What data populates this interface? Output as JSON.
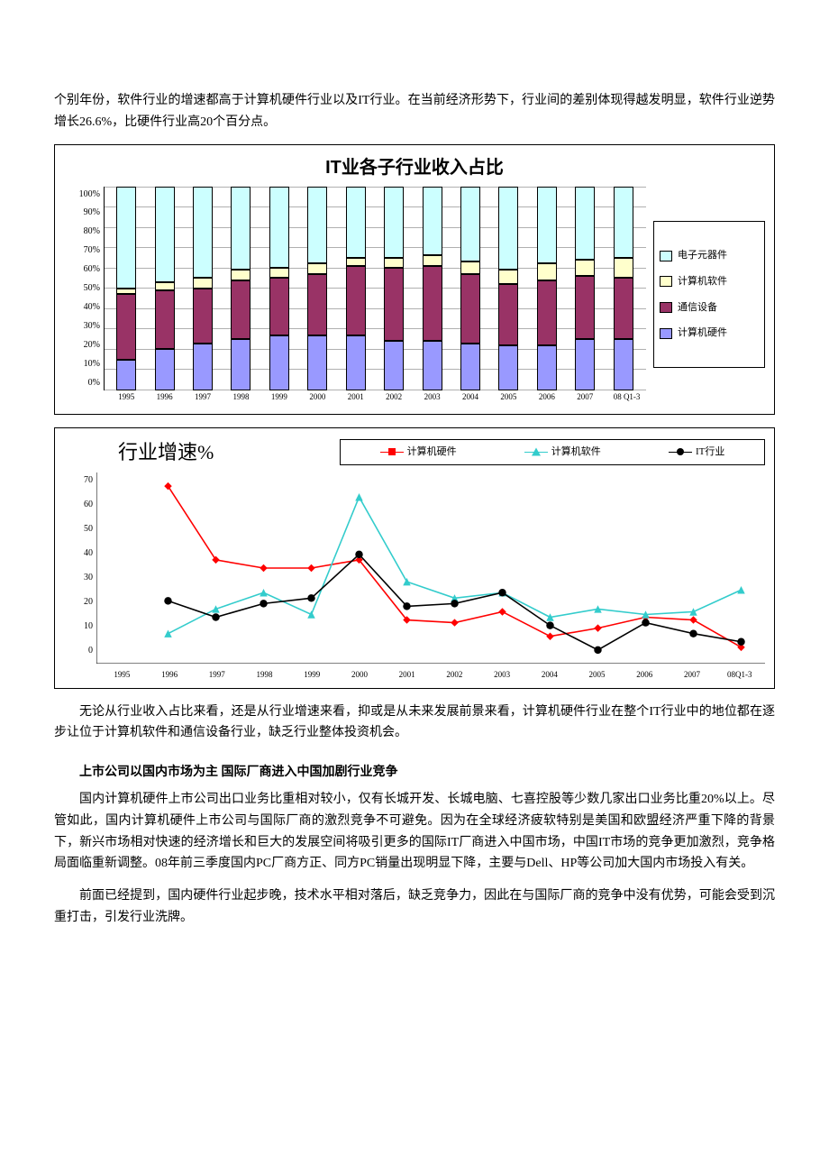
{
  "paragraphs": {
    "intro": "个别年份，软件行业的增速都高于计算机硬件行业以及IT行业。在当前经济形势下，行业间的差别体现得越发明显，软件行业逆势增长26.6%，比硬件行业高20个百分点。",
    "mid": "无论从行业收入占比来看，还是从行业增速来看，抑或是从未来发展前景来看，计算机硬件行业在整个IT行业中的地位都在逐步让位于计算机软件和通信设备行业，缺乏行业整体投资机会。",
    "heading": "上市公司以国内市场为主 国际厂商进入中国加剧行业竞争",
    "p2": "国内计算机硬件上市公司出口业务比重相对较小，仅有长城开发、长城电脑、七喜控股等少数几家出口业务比重20%以上。尽管如此，国内计算机硬件上市公司与国际厂商的激烈竞争不可避免。因为在全球经济疲软特别是美国和欧盟经济严重下降的背景下，新兴市场相对快速的经济增长和巨大的发展空间将吸引更多的国际IT厂商进入中国市场，中国IT市场的竞争更加激烈，竞争格局面临重新调整。08年前三季度国内PC厂商方正、同方PC销量出现明显下降，主要与Dell、HP等公司加大国内市场投入有关。",
    "p3": "前面已经提到，国内硬件行业起步晚，技术水平相对落后，缺乏竞争力，因此在与国际厂商的竞争中没有优势，可能会受到沉重打击，引发行业洗牌。"
  },
  "chart1": {
    "title": "IT业各子行业收入占比",
    "type": "stacked-bar",
    "categories": [
      "1995",
      "1996",
      "1997",
      "1998",
      "1999",
      "2000",
      "2001",
      "2002",
      "2003",
      "2004",
      "2005",
      "2006",
      "2007",
      "08 Q1-3"
    ],
    "series_order_bottom_to_top": [
      "hw",
      "comm",
      "sw",
      "elec"
    ],
    "legend_order_top_to_bottom": [
      "elec",
      "sw",
      "comm",
      "hw"
    ],
    "series": {
      "hw": {
        "label": "计算机硬件",
        "color": "#9999ff"
      },
      "comm": {
        "label": "通信设备",
        "color": "#993366"
      },
      "sw": {
        "label": "计算机软件",
        "color": "#ffffcc"
      },
      "elec": {
        "label": "电子元器件",
        "color": "#ccffff"
      }
    },
    "values_pct": {
      "hw": [
        15,
        20,
        23,
        25,
        27,
        27,
        27,
        24,
        24,
        23,
        22,
        22,
        25,
        25
      ],
      "comm": [
        32,
        29,
        27,
        29,
        28,
        30,
        34,
        36,
        37,
        34,
        30,
        32,
        31,
        30
      ],
      "sw": [
        3,
        4,
        5,
        5,
        5,
        5,
        4,
        5,
        5,
        6,
        7,
        8,
        8,
        10
      ],
      "elec": [
        50,
        47,
        45,
        41,
        40,
        38,
        35,
        35,
        34,
        37,
        41,
        38,
        36,
        35
      ]
    },
    "yaxis": {
      "min": 0,
      "max": 100,
      "step": 10,
      "suffix": "%"
    },
    "grid_color": "#b0b0b0",
    "bar_border": "#000000",
    "background": "#ffffff",
    "title_fontsize": 20,
    "label_fontsize": 10
  },
  "chart2": {
    "title": "行业增速%",
    "type": "line",
    "categories": [
      "1995",
      "1996",
      "1997",
      "1998",
      "1999",
      "2000",
      "2001",
      "2002",
      "2003",
      "2004",
      "2005",
      "2006",
      "2007",
      "08Q1-3"
    ],
    "series": [
      {
        "key": "hw",
        "label": "计算机硬件",
        "color": "#ff0000",
        "marker": "diamond",
        "values": [
          null,
          65,
          38,
          35,
          35,
          38,
          16,
          15,
          19,
          10,
          13,
          17,
          16,
          6
        ]
      },
      {
        "key": "sw",
        "label": "计算机软件",
        "color": "#33cccc",
        "marker": "triangle",
        "values": [
          null,
          11,
          20,
          26,
          18,
          61,
          30,
          24,
          26,
          17,
          20,
          18,
          19,
          27
        ]
      },
      {
        "key": "it",
        "label": "IT行业",
        "color": "#000000",
        "marker": "circle",
        "values": [
          null,
          23,
          17,
          22,
          24,
          40,
          21,
          22,
          26,
          14,
          5,
          15,
          11,
          8
        ]
      }
    ],
    "yaxis": {
      "min": 0,
      "max": 70,
      "step": 10
    },
    "grid": false,
    "axis_color": "#000000",
    "title_fontsize": 22,
    "label_fontsize": 10,
    "line_width": 1.5,
    "marker_size": 8
  },
  "colors": {
    "text": "#000000",
    "page_bg": "#ffffff",
    "frame_border": "#000000"
  }
}
